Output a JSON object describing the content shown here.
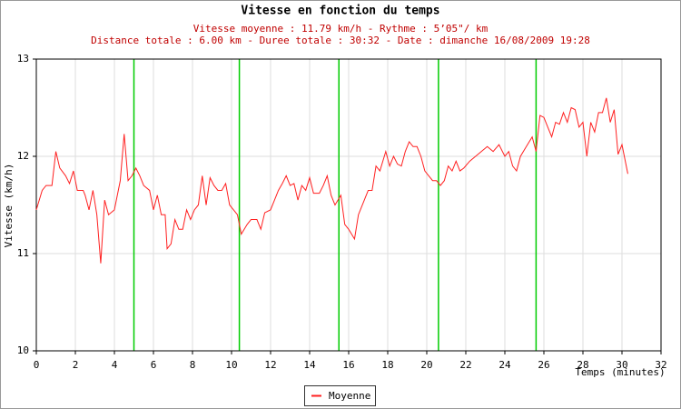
{
  "chart_data": {
    "type": "line",
    "title": "Vitesse en fonction du temps",
    "subtitle": [
      "Vitesse moyenne : 11.79 km/h - Rythme : 5’05\"/ km",
      "Distance totale : 6.00 km - Duree totale : 30:32 - Date : dimanche 16/08/2009 19:28"
    ],
    "xlabel": "Temps (minutes)",
    "ylabel": "Vitesse (km/h)",
    "xlim": [
      0,
      32
    ],
    "ylim": [
      10,
      13
    ],
    "xticks": [
      0,
      2,
      4,
      6,
      8,
      10,
      12,
      14,
      16,
      18,
      20,
      22,
      24,
      26,
      28,
      30,
      32
    ],
    "yticks": [
      10,
      11,
      12,
      13
    ],
    "grid": true,
    "vlines": {
      "color": "#00cc00",
      "x": [
        5.0,
        10.4,
        15.5,
        20.6,
        25.6
      ]
    },
    "x": [
      0,
      0.3,
      0.5,
      0.8,
      1.0,
      1.2,
      1.5,
      1.7,
      1.9,
      2.1,
      2.4,
      2.5,
      2.7,
      2.9,
      3.1,
      3.3,
      3.5,
      3.7,
      4.0,
      4.1,
      4.3,
      4.5,
      4.7,
      4.9,
      5.1,
      5.3,
      5.5,
      5.8,
      6.0,
      6.2,
      6.4,
      6.6,
      6.7,
      6.9,
      7.1,
      7.3,
      7.5,
      7.7,
      7.9,
      8.1,
      8.3,
      8.5,
      8.7,
      8.9,
      9.1,
      9.3,
      9.5,
      9.7,
      9.9,
      10.1,
      10.3,
      10.5,
      10.8,
      11.0,
      11.3,
      11.5,
      11.7,
      12.0,
      12.2,
      12.4,
      12.6,
      12.8,
      13.0,
      13.2,
      13.4,
      13.6,
      13.8,
      14.0,
      14.2,
      14.5,
      14.7,
      14.9,
      15.1,
      15.3,
      15.6,
      15.8,
      16.0,
      16.3,
      16.5,
      16.8,
      17.0,
      17.2,
      17.4,
      17.6,
      17.9,
      18.1,
      18.3,
      18.5,
      18.7,
      18.9,
      19.1,
      19.3,
      19.5,
      19.7,
      19.9,
      20.1,
      20.3,
      20.5,
      20.7,
      20.9,
      21.1,
      21.3,
      21.5,
      21.7,
      21.9,
      22.2,
      22.5,
      22.8,
      23.1,
      23.4,
      23.7,
      24.0,
      24.2,
      24.4,
      24.6,
      24.8,
      25.1,
      25.4,
      25.6,
      25.8,
      26.0,
      26.2,
      26.4,
      26.6,
      26.8,
      27.0,
      27.2,
      27.4,
      27.6,
      27.8,
      28.0,
      28.2,
      28.4,
      28.6,
      28.8,
      29.0,
      29.2,
      29.4,
      29.6,
      29.8,
      30.0,
      30.3
    ],
    "series": [
      {
        "name": "Moyenne",
        "color": "#ff2020",
        "values": [
          11.45,
          11.65,
          11.7,
          11.7,
          12.05,
          11.88,
          11.8,
          11.72,
          11.85,
          11.65,
          11.65,
          11.6,
          11.45,
          11.65,
          11.4,
          10.9,
          11.55,
          11.4,
          11.45,
          11.55,
          11.75,
          12.23,
          11.75,
          11.8,
          11.88,
          11.8,
          11.7,
          11.65,
          11.45,
          11.6,
          11.4,
          11.4,
          11.05,
          11.1,
          11.35,
          11.25,
          11.25,
          11.45,
          11.35,
          11.45,
          11.5,
          11.8,
          11.5,
          11.78,
          11.7,
          11.65,
          11.65,
          11.72,
          11.5,
          11.45,
          11.4,
          11.2,
          11.3,
          11.35,
          11.35,
          11.25,
          11.42,
          11.45,
          11.55,
          11.65,
          11.72,
          11.8,
          11.7,
          11.72,
          11.55,
          11.7,
          11.65,
          11.78,
          11.62,
          11.62,
          11.7,
          11.8,
          11.6,
          11.5,
          11.6,
          11.3,
          11.25,
          11.15,
          11.4,
          11.55,
          11.65,
          11.65,
          11.9,
          11.85,
          12.05,
          11.9,
          12.0,
          11.92,
          11.9,
          12.05,
          12.15,
          12.1,
          12.1,
          12.0,
          11.85,
          11.8,
          11.75,
          11.75,
          11.7,
          11.75,
          11.9,
          11.85,
          11.95,
          11.85,
          11.88,
          11.95,
          12.0,
          12.05,
          12.1,
          12.05,
          12.12,
          12.0,
          12.05,
          11.9,
          11.85,
          12.0,
          12.1,
          12.2,
          12.05,
          12.42,
          12.4,
          12.3,
          12.2,
          12.35,
          12.33,
          12.45,
          12.35,
          12.5,
          12.48,
          12.3,
          12.35,
          12.0,
          12.35,
          12.25,
          12.45,
          12.45,
          12.6,
          12.35,
          12.48,
          12.02,
          12.12,
          11.82
        ]
      }
    ]
  }
}
